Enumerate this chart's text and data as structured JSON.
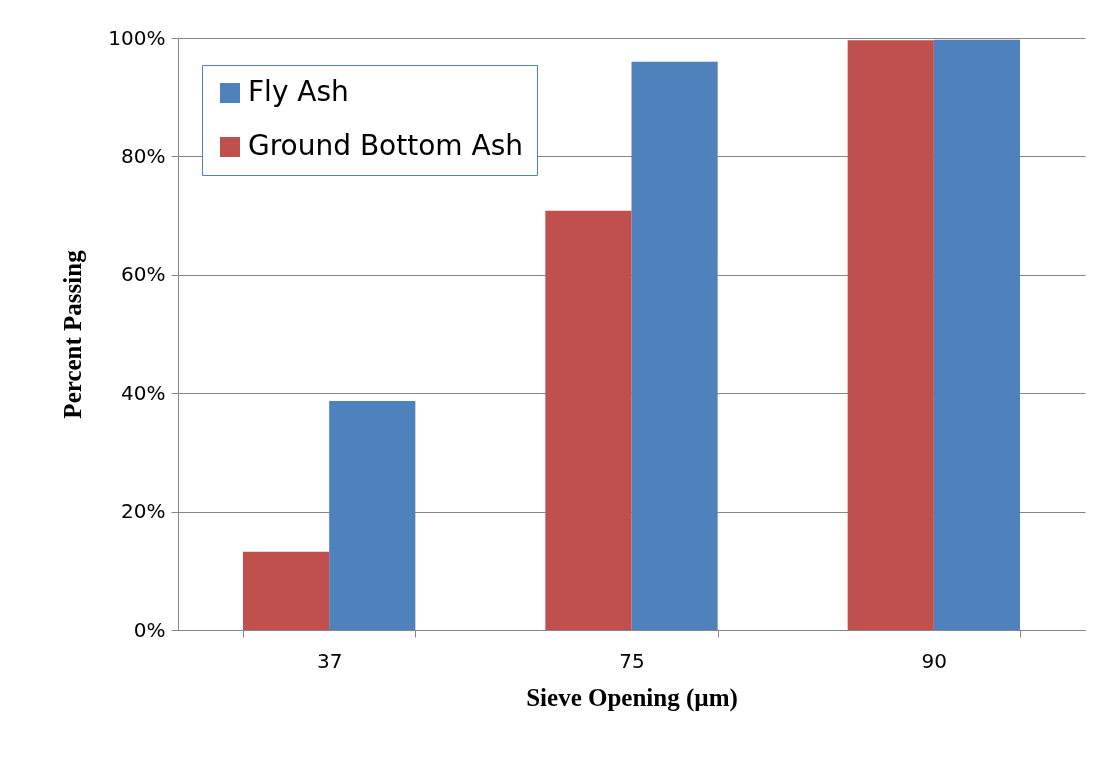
{
  "chart_data": {
    "type": "bar",
    "xlabel": "Sieve Opening (µm)",
    "ylabel": "Percent Passing",
    "categories": [
      "37",
      "75",
      "90"
    ],
    "series": [
      {
        "name": "Fly Ash",
        "color": "#4f81bd",
        "values": [
          38.7,
          96,
          99.7
        ]
      },
      {
        "name": "Ground Bottom Ash",
        "color": "#c0504d",
        "values": [
          13.2,
          70.8,
          99.6
        ]
      }
    ],
    "ylim": [
      0,
      100
    ],
    "yticks": [
      {
        "value": 0,
        "label": "0%"
      },
      {
        "value": 20,
        "label": "20%"
      },
      {
        "value": 40,
        "label": "40%"
      },
      {
        "value": 60,
        "label": "60%"
      },
      {
        "value": 80,
        "label": "80%"
      },
      {
        "value": 100,
        "label": "100%"
      }
    ],
    "grid": "y",
    "legend": "top left"
  }
}
